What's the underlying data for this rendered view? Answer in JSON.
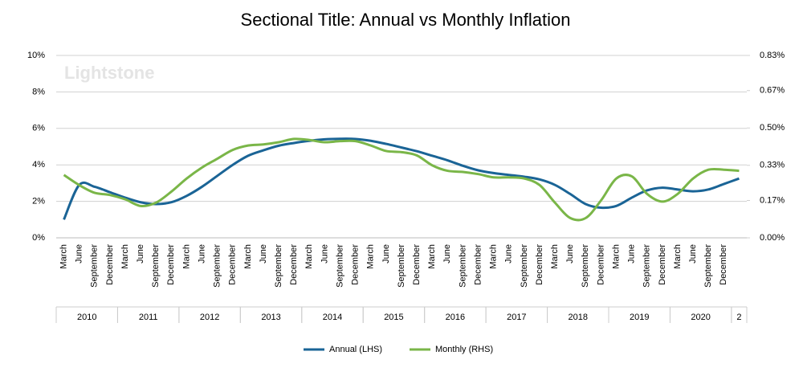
{
  "chart_data": {
    "type": "line",
    "title": "Sectional Title: Annual vs Monthly Inflation",
    "watermark": "Lightstone",
    "categories": [
      "March",
      "June",
      "September",
      "December",
      "March",
      "June",
      "September",
      "December",
      "March",
      "June",
      "September",
      "December",
      "March",
      "June",
      "September",
      "December",
      "March",
      "June",
      "September",
      "December",
      "March",
      "June",
      "September",
      "December",
      "March",
      "June",
      "September",
      "December",
      "March",
      "June",
      "September",
      "December",
      "March",
      "June",
      "September",
      "December",
      "March",
      "June",
      "September",
      "December",
      "March",
      "June",
      "September",
      "December",
      null
    ],
    "years": [
      "2010",
      "2011",
      "2012",
      "2013",
      "2014",
      "2015",
      "2016",
      "2017",
      "2018",
      "2019",
      "2020",
      "2"
    ],
    "ylim": [
      0,
      10
    ],
    "yticks": [
      {
        "value": 0,
        "label": "0%"
      },
      {
        "value": 2,
        "label": "2%"
      },
      {
        "value": 4,
        "label": "4%"
      },
      {
        "value": 6,
        "label": "6%"
      },
      {
        "value": 8,
        "label": "8%"
      },
      {
        "value": 10,
        "label": "10%"
      }
    ],
    "y2lim": [
      0,
      0.83
    ],
    "y2ticks": [
      {
        "value": 0,
        "label": "0.00%"
      },
      {
        "value": 0.17,
        "label": "0.17%"
      },
      {
        "value": 0.33,
        "label": "0.33%"
      },
      {
        "value": 0.5,
        "label": "0.50%"
      },
      {
        "value": 0.67,
        "label": "0.67%"
      },
      {
        "value": 0.83,
        "label": "0.83%"
      }
    ],
    "grid": true,
    "legend": "bottom",
    "series": [
      {
        "name": "Annual (LHS)",
        "color": "#1a6496",
        "axis": "y",
        "values": [
          1.0,
          2.9,
          2.8,
          2.5,
          2.2,
          1.95,
          1.85,
          1.95,
          2.3,
          2.8,
          3.4,
          4.0,
          4.5,
          4.8,
          5.05,
          5.2,
          5.32,
          5.4,
          5.43,
          5.42,
          5.32,
          5.15,
          4.95,
          4.75,
          4.5,
          4.25,
          3.95,
          3.7,
          3.55,
          3.45,
          3.35,
          3.2,
          2.9,
          2.4,
          1.85,
          1.65,
          1.75,
          2.2,
          2.6,
          2.75,
          2.65,
          2.55,
          2.65,
          2.95,
          3.25
        ]
      },
      {
        "name": "Monthly (RHS)",
        "color": "#7ab648",
        "axis": "y2",
        "values": [
          0.286,
          0.24,
          0.205,
          0.195,
          0.175,
          0.145,
          0.16,
          0.21,
          0.27,
          0.32,
          0.36,
          0.4,
          0.42,
          0.425,
          0.435,
          0.45,
          0.445,
          0.435,
          0.44,
          0.44,
          0.42,
          0.395,
          0.39,
          0.375,
          0.33,
          0.305,
          0.3,
          0.29,
          0.275,
          0.275,
          0.27,
          0.24,
          0.16,
          0.09,
          0.09,
          0.17,
          0.27,
          0.28,
          0.2,
          0.165,
          0.2,
          0.27,
          0.31,
          0.31,
          0.305
        ]
      }
    ]
  }
}
